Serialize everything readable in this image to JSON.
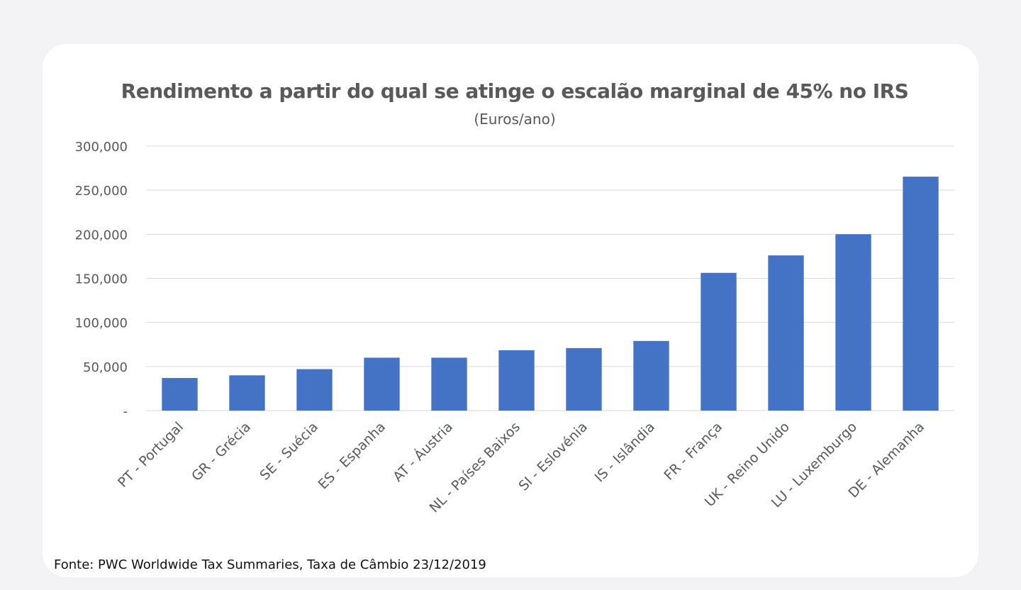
{
  "chart_data": {
    "type": "bar",
    "title": "Rendimento a partir do qual se atinge o escalão marginal de 45% no IRS",
    "subtitle": "(Euros/ano)",
    "xlabel": "",
    "ylabel": "",
    "categories": [
      "PT - Portugal",
      "GR - Grécia",
      "SE - Suécia",
      "ES - Espanha",
      "AT - Áustria",
      "NL - Países Baixos",
      "SI - Eslovénia",
      "IS - Islândia",
      "FR - França",
      "UK - Reino Unido",
      "LU - Luxemburgo",
      "DE - Alemanha"
    ],
    "values": [
      36967,
      40000,
      47000,
      60000,
      60000,
      68507,
      70907,
      79000,
      156244,
      176000,
      200000,
      265326
    ],
    "ylim": [
      0,
      300000
    ],
    "yticks": [
      0,
      50000,
      100000,
      150000,
      200000,
      250000,
      300000
    ],
    "ytick_labels": [
      "-",
      "50,000",
      "100,000",
      "150,000",
      "200,000",
      "250,000",
      "300,000"
    ],
    "grid": true,
    "bar_color": "#4472c4",
    "grid_color": "#d9d9d9"
  },
  "source_note": "Fonte: PWC Worldwide Tax Summaries, Taxa de Câmbio 23/12/2019"
}
